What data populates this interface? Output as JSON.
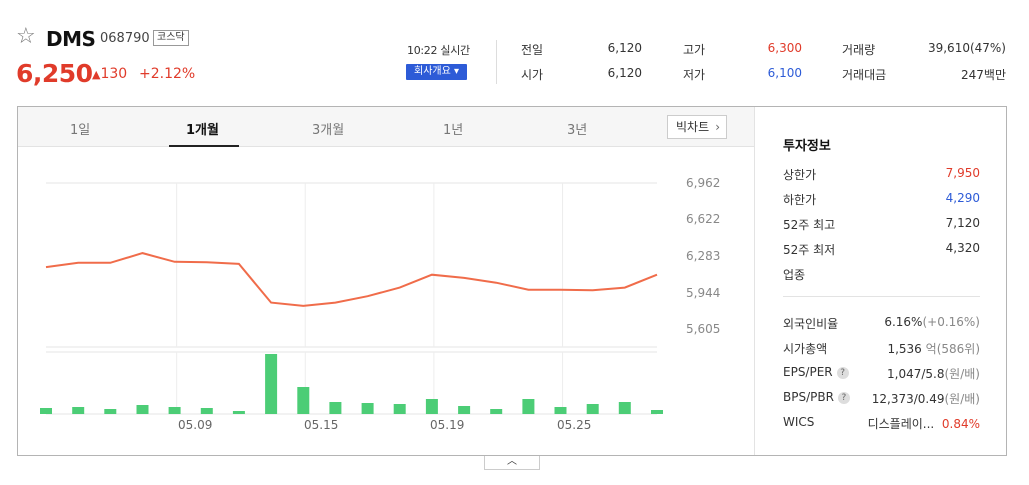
{
  "stock": {
    "star_icon": "star-outline-icon",
    "name": "DMS",
    "code": "068790",
    "market": "코스닥",
    "price": "6,250",
    "change_arrow": "▲",
    "change": "130",
    "change_pct": "+2.12%",
    "realtime": "10:22 실시간",
    "company_btn": "회사개요 ▾"
  },
  "quote": {
    "prev_label": "전일",
    "prev": "6,120",
    "open_label": "시가",
    "open": "6,120",
    "high_label": "고가",
    "high": "6,300",
    "low_label": "저가",
    "low": "6,100",
    "volume_label": "거래량",
    "volume": "39,610(47%)",
    "amount_label": "거래대금",
    "amount": "247백만"
  },
  "tabs": [
    "1일",
    "1개월",
    "3개월",
    "1년",
    "3년"
  ],
  "active_tab": 1,
  "big_chart_btn": "빅차트",
  "chart_data": {
    "type": "line",
    "series": [
      {
        "values": [
          6180,
          6220,
          6220,
          6310,
          6230,
          6225,
          6210,
          5850,
          5820,
          5850,
          5910,
          5990,
          6110,
          6080,
          6035,
          5970,
          5970,
          5965,
          5990,
          6110
        ]
      }
    ],
    "volume": [
      6,
      7,
      5,
      9,
      7,
      6,
      3,
      60,
      27,
      12,
      11,
      10,
      15,
      8,
      5,
      15,
      7,
      10,
      12,
      4
    ],
    "volume_max": 62,
    "ylim": [
      5605,
      6962
    ],
    "yticks": [
      "6,962",
      "6,622",
      "6,283",
      "5,944",
      "5,605"
    ],
    "xticks": [
      "05.09",
      "05.15",
      "05.19",
      "05.25"
    ],
    "xtick_index": [
      4,
      8,
      12,
      16
    ],
    "grid": true,
    "colors": {
      "line": "#f06c4a",
      "volume": "#4ccd76"
    }
  },
  "info": {
    "title": "투자정보",
    "upper_label": "상한가",
    "upper": "7,950",
    "lower_label": "하한가",
    "lower": "4,290",
    "w52h_label": "52주 최고",
    "w52h": "7,120",
    "w52l_label": "52주 최저",
    "w52l": "4,320",
    "sector_label": "업종",
    "foreign_label": "외국인비율",
    "foreign": "6.16%",
    "foreign_chg": "(+0.16%)",
    "mcap_label": "시가총액",
    "mcap": "1,536",
    "mcap_unit": "억",
    "mcap_rank": "(586위)",
    "eps_label": "EPS/PER",
    "eps": "1,047/5.8",
    "eps_unit": "(원/배)",
    "bps_label": "BPS/PBR",
    "bps": "12,373/0.49",
    "bps_unit": "(원/배)",
    "wics_label": "WICS",
    "wics": "디스플레이...",
    "wics_pct": "0.84%"
  },
  "toggle_icon": "chevron-up-icon"
}
